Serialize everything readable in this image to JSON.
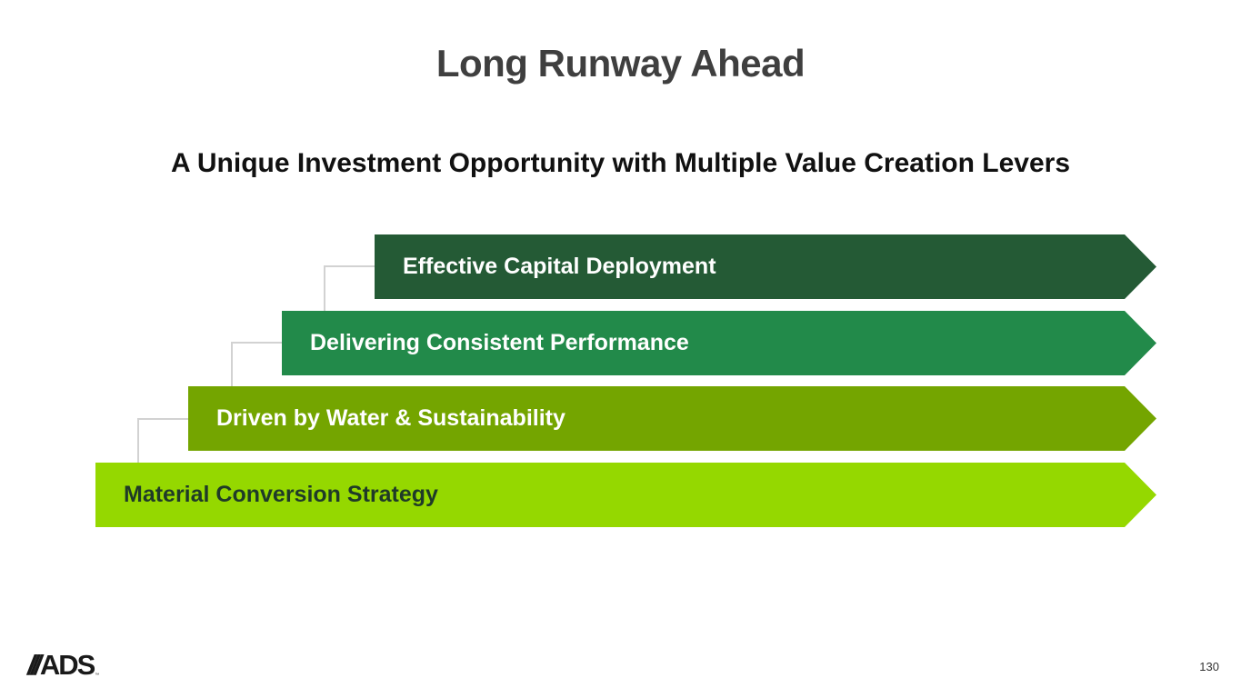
{
  "slide": {
    "title": "Long Runway Ahead",
    "subtitle": "A Unique Investment Opportunity with Multiple Value Creation Levers",
    "page_number": "130"
  },
  "steps": [
    {
      "label": "Effective Capital Deployment",
      "color": "#245a35",
      "text_color": "#ffffff"
    },
    {
      "label": "Delivering Consistent Performance",
      "color": "#228a4a",
      "text_color": "#ffffff"
    },
    {
      "label": "Driven by Water & Sustainability",
      "color": "#74a500",
      "text_color": "#ffffff"
    },
    {
      "label": "Material Conversion Strategy",
      "color": "#95d800",
      "text_color": "#1f3a28"
    }
  ],
  "logo": {
    "slashes": "///",
    "text": "ADS",
    "trademark": "™"
  }
}
